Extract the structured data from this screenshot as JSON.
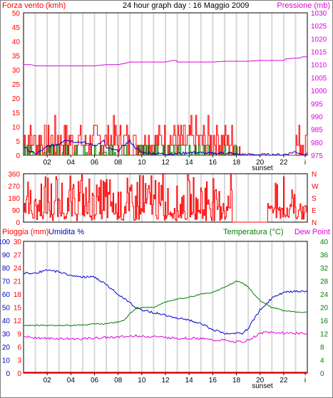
{
  "header": {
    "left_label": "Forza vento (kmh)",
    "title": "24 hour graph day : 16 Maggio 2009",
    "right_label": "Pressione (mb)"
  },
  "bottom_header": {
    "rain_label": "Pioggia (mm)",
    "humidity_label": "Umidita %",
    "temp_label": "Temperatura (°C)",
    "dew_label": "Dew Point"
  },
  "sunset_label": "sunset",
  "colors": {
    "wind": "#ff0000",
    "gust_avg": "#0000cc",
    "wind_bars_low": "#008000",
    "pressure": "#e000e0",
    "direction": "#ff0000",
    "humidity": "#0000cc",
    "temperature": "#008000",
    "dew_point": "#e000e0",
    "rain": "#ff0000",
    "grid": "#d8d8d8",
    "axis": "#000000"
  },
  "x_ticks": [
    "02",
    "04",
    "06",
    "08",
    "10",
    "12",
    "14",
    "16",
    "18",
    "20",
    "22",
    "i"
  ],
  "chart_data": [
    {
      "type": "line",
      "name": "wind_pressure",
      "left_axis": {
        "label": "Forza vento (kmh)",
        "ticks": [
          0,
          5,
          10,
          15,
          20,
          25,
          30,
          35,
          40,
          45,
          50
        ],
        "ylim": [
          0,
          50
        ]
      },
      "right_axis": {
        "label": "Pressione (mb)",
        "ticks": [
          975,
          980,
          985,
          990,
          995,
          1000,
          1005,
          1010,
          1015,
          1020,
          1025,
          1030
        ],
        "ylim": [
          975,
          1030
        ]
      },
      "pressure_hours": [
        0,
        0.6,
        1,
        2,
        4,
        6,
        7,
        8,
        8.6,
        9,
        10,
        11,
        12,
        12.6,
        12.9,
        13,
        14,
        16,
        17,
        18,
        19,
        20,
        21,
        22,
        22.2,
        23,
        23.3,
        23.6,
        24
      ],
      "pressure_values": [
        1010,
        1010,
        1009.5,
        1009.5,
        1009.5,
        1009.5,
        1010,
        1010,
        1010.5,
        1011,
        1011,
        1011,
        1011,
        1011.6,
        1011.6,
        1011,
        1011,
        1011,
        1011.3,
        1011.3,
        1011.3,
        1011.6,
        1011.6,
        1011.6,
        1012.2,
        1012.5,
        1012.5,
        1013,
        1013
      ]
    },
    {
      "type": "line",
      "name": "wind_direction",
      "left_axis": {
        "ticks": [
          0,
          90,
          180,
          270,
          360
        ],
        "ylim": [
          0,
          360
        ]
      },
      "right_axis": {
        "ticks": [
          "N",
          "E",
          "S",
          "W",
          "N"
        ]
      }
    },
    {
      "type": "line",
      "name": "temp_humidity",
      "rain_axis": {
        "label": "Pioggia (mm)",
        "ticks": [
          0,
          3,
          6,
          9,
          12,
          15,
          18,
          21,
          24,
          27,
          30
        ],
        "ylim": [
          0,
          30
        ]
      },
      "humidity_axis": {
        "label": "Umidita %",
        "ticks": [
          0,
          10,
          20,
          30,
          40,
          50,
          60,
          70,
          80,
          90,
          100
        ],
        "ylim": [
          0,
          100
        ]
      },
      "temp_axis": {
        "label": "Temperatura (°C)",
        "ticks": [
          0,
          4,
          8,
          12,
          16,
          20,
          24,
          28,
          32,
          36,
          40
        ],
        "ylim": [
          0,
          40
        ]
      },
      "hours": [
        0,
        1,
        2,
        3,
        4,
        5,
        6,
        7,
        8,
        8.5,
        9,
        9.5,
        10,
        11,
        12,
        13,
        14,
        15,
        16,
        17,
        17.5,
        18,
        18.5,
        19,
        20,
        20.5,
        21,
        22,
        23,
        24
      ],
      "humidity": [
        76,
        76,
        78,
        77,
        74,
        73,
        73,
        67,
        60,
        57,
        53,
        50,
        48,
        46,
        44,
        42,
        40,
        38,
        33,
        30,
        30,
        30,
        30,
        34,
        48,
        52,
        57,
        61,
        62,
        62
      ],
      "temperature": [
        14.5,
        14.5,
        14.5,
        14.4,
        14.5,
        14.6,
        14.9,
        15,
        15.5,
        16,
        18,
        19.5,
        19.9,
        20,
        21.5,
        22.5,
        23,
        24,
        24.5,
        26,
        27,
        28,
        27.5,
        26,
        22,
        21,
        20,
        19,
        18.5,
        18.5
      ],
      "dew_point": [
        11,
        10.8,
        10.5,
        10.5,
        10.4,
        10.4,
        10.6,
        10.8,
        11,
        11,
        11.2,
        11.5,
        11,
        11.2,
        10.8,
        10.6,
        10.6,
        10.5,
        10,
        10,
        9.5,
        9.5,
        9.5,
        10,
        12,
        12.4,
        12.3,
        12.2,
        12.1,
        12
      ],
      "rain": [
        0,
        0
      ]
    }
  ]
}
